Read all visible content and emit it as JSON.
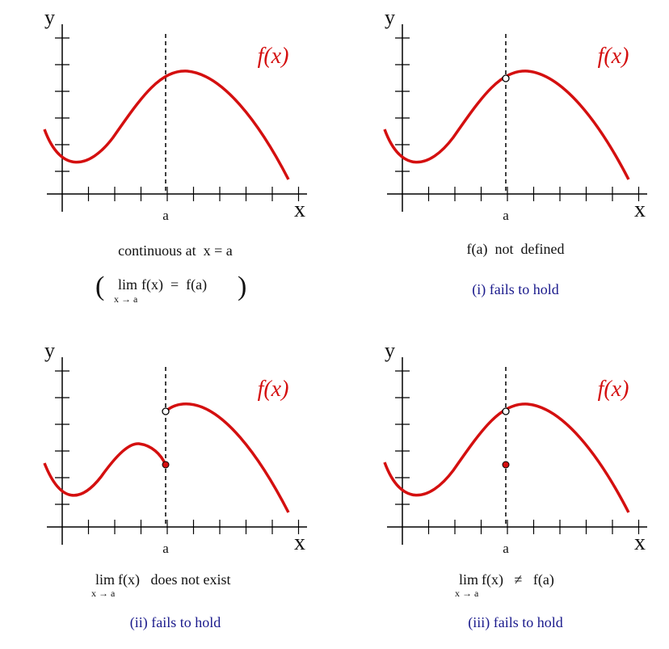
{
  "panels": [
    {
      "y_axis": "y",
      "x_axis": "x",
      "a_tick": "a",
      "curve_label": "f(x)",
      "statement": {
        "open": "(",
        "lim": "lim",
        "sub": "x → a",
        "rest": "f(x)  =  f(a)",
        "close": ")",
        "lead": "continuous at  x = a"
      }
    },
    {
      "y_axis": "y",
      "x_axis": "x",
      "a_tick": "a",
      "curve_label": "f(x)",
      "statement": {
        "lead": "f(a)  not  defined"
      },
      "condition": "(i) fails to hold"
    },
    {
      "y_axis": "y",
      "x_axis": "x",
      "a_tick": "a",
      "curve_label": "f(x)",
      "statement": {
        "lim": "lim",
        "sub": "x → a",
        "rest": "f(x)   does not exist"
      },
      "condition": "(ii) fails to hold"
    },
    {
      "y_axis": "y",
      "x_axis": "x",
      "a_tick": "a",
      "curve_label": "f(x)",
      "statement": {
        "lim": "lim",
        "sub": "x → a",
        "rest": "f(x)   ≠   f(a)"
      },
      "condition": "(iii) fails to hold"
    }
  ]
}
